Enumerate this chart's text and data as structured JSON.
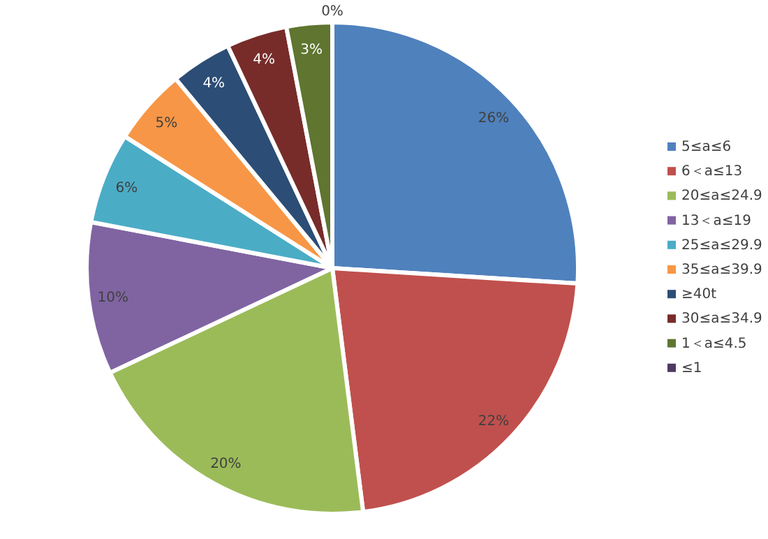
{
  "chart_data": {
    "type": "pie",
    "legend": "right",
    "categories": [
      "5≤a≤6",
      "6＜a≤13",
      "20≤a≤24.9",
      "13＜a≤19",
      "25≤a≤29.9",
      "35≤a≤39.9",
      "≥40t",
      "30≤a≤34.9",
      "1＜a≤4.5",
      "≤1"
    ],
    "values": [
      26,
      22,
      20,
      10,
      6,
      5,
      4,
      4,
      3,
      0
    ],
    "value_labels": [
      "26%",
      "22%",
      "20%",
      "10%",
      "6%",
      "5%",
      "4%",
      "4%",
      "3%",
      "0%"
    ],
    "colors": [
      "#4f81bd",
      "#c0504d",
      "#9bbb59",
      "#8064a2",
      "#4bacc6",
      "#f79646",
      "#2c4d75",
      "#772c2a",
      "#5f7530",
      "#4d3b62"
    ]
  }
}
